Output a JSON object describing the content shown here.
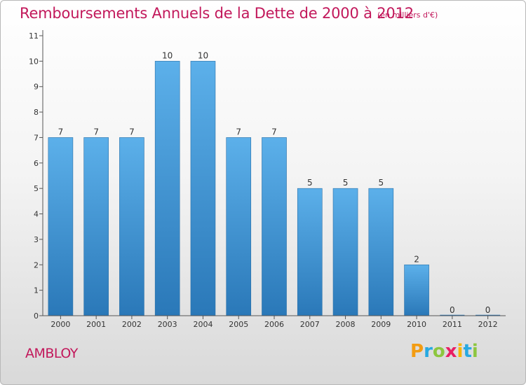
{
  "header": {
    "title": "Remboursements Annuels de la Dette de 2000 à 2012",
    "subtitle": "(en milliers d'€)"
  },
  "footer": {
    "commune": "AMBLOY",
    "logo_letters": [
      "P",
      "r",
      "o",
      "x",
      "i",
      "t",
      "i"
    ],
    "logo_colors": [
      "#f39c12",
      "#27a9e1",
      "#8dc63f",
      "#e91e63",
      "#f7b500",
      "#27a9e1",
      "#8dc63f"
    ]
  },
  "chart_data": {
    "type": "bar",
    "categories": [
      "2000",
      "2001",
      "2002",
      "2003",
      "2004",
      "2005",
      "2006",
      "2007",
      "2008",
      "2009",
      "2010",
      "2011",
      "2012"
    ],
    "values": [
      7,
      7,
      7,
      10,
      10,
      7,
      7,
      5,
      5,
      5,
      2,
      0,
      0
    ],
    "data_labels": [
      "7",
      "7",
      "7",
      "10",
      "10",
      "7",
      "7",
      "5",
      "5",
      "5",
      "2",
      "0",
      "0"
    ],
    "yticks": [
      0,
      1,
      2,
      3,
      4,
      5,
      6,
      7,
      8,
      9,
      10,
      11
    ],
    "ylim": [
      0,
      11
    ],
    "title": "Remboursements Annuels de la Dette de 2000 à 2012",
    "xlabel": "",
    "ylabel": "",
    "grid": false,
    "colors": {
      "bar_light": "#5aaee8",
      "bar_dark": "#2a78b8",
      "axis": "#333333",
      "title": "#c2185b"
    }
  }
}
